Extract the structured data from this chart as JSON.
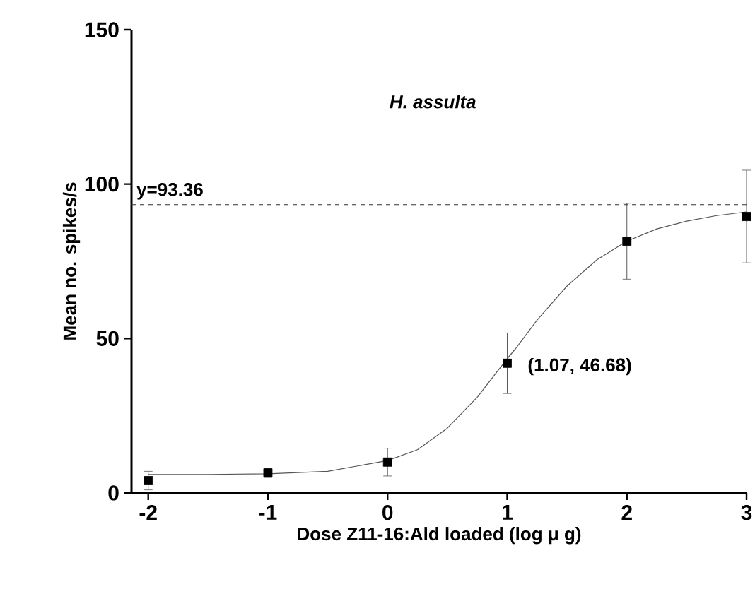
{
  "chart_data": {
    "type": "scatter",
    "title": "H. assulta",
    "xlabel": "Dose Z11-16:Ald loaded (log μ g)",
    "ylabel": "Mean no. spikes/s",
    "xlim": [
      -2.14,
      3
    ],
    "xticks": [
      -2,
      -1,
      0,
      1,
      2,
      3
    ],
    "ylim": [
      0,
      150
    ],
    "yticks": [
      0,
      50,
      100,
      150
    ],
    "grid": false,
    "series": [
      {
        "marker": "square",
        "color": "#000000",
        "x": [
          -2,
          -1,
          0,
          1,
          2,
          3
        ],
        "values": [
          4,
          6.5,
          10,
          42,
          81.5,
          89.5
        ],
        "errors": [
          3,
          1.5,
          4.5,
          9.8,
          12.3,
          15
        ]
      },
      {
        "type": "line",
        "marker": "none",
        "line_style": "solid",
        "color": "#555555",
        "x": [
          -2,
          -1.5,
          -1,
          -0.5,
          0,
          0.25,
          0.5,
          0.75,
          1,
          1.07,
          1.25,
          1.5,
          1.75,
          2,
          2.25,
          2.5,
          2.75,
          3
        ],
        "values": [
          6,
          6,
          6.2,
          7,
          10.5,
          14,
          21,
          31,
          43.5,
          46.7,
          56,
          67,
          75.5,
          81.5,
          85.5,
          88,
          89.8,
          91
        ]
      }
    ],
    "ref_lines": [
      {
        "axis": "y",
        "value": 93.36,
        "label": "y=93.36",
        "line_style": "dashed",
        "color": "#333333"
      }
    ],
    "annotations": [
      {
        "text": "(1.07, 46.68)",
        "x": 1.07,
        "y": 46.68
      }
    ]
  }
}
